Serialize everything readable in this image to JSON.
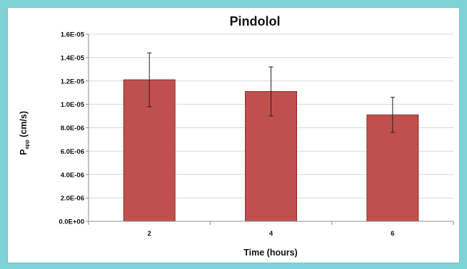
{
  "chart_data": {
    "type": "bar",
    "title": "Pindolol",
    "xlabel": "Time (hours)",
    "ylabel_main": "P",
    "ylabel_sub": "app",
    "ylabel_units": " (cm/s)",
    "categories": [
      "2",
      "4",
      "6"
    ],
    "values": [
      1.21e-05,
      1.11e-05,
      9.1e-06
    ],
    "errors": [
      2.3e-06,
      2.1e-06,
      1.5e-06
    ],
    "ylim": [
      0,
      1.6e-05
    ],
    "yticks": [
      0,
      2e-06,
      4e-06,
      6e-06,
      8e-06,
      1e-05,
      1.2e-05,
      1.4e-05,
      1.6e-05
    ],
    "ytick_labels": [
      "0.0E+00",
      "2.0E-06",
      "4.0E-06",
      "6.0E-06",
      "8.0E-06",
      "1.0E-05",
      "1.2E-05",
      "1.4E-05",
      "1.6E-05"
    ],
    "grid": true,
    "legend": "none",
    "bar_color": "#c0504d",
    "bar_edge_color": "#8c2f2c"
  },
  "colors": {
    "background": "#7fd3d6",
    "gridline": "#d9d9d9",
    "axis": "#8c8c8c",
    "error_bar": "#222222"
  }
}
